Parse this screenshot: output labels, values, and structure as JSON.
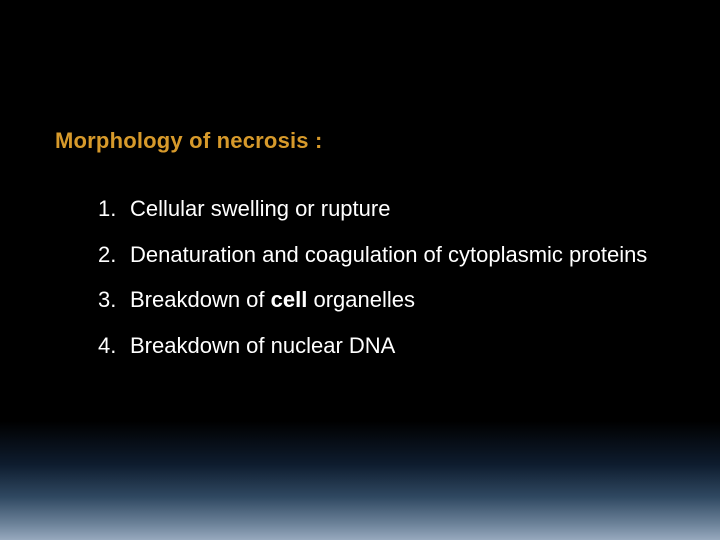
{
  "slide": {
    "title": "Morphology of necrosis :",
    "title_color": "#d79a2b",
    "text_color": "#ffffff",
    "background_gradient": [
      "#000000",
      "#000000",
      "#0e1c2e",
      "#2f4861",
      "#6c8299",
      "#97a9be"
    ],
    "title_fontsize": 22,
    "body_fontsize": 22,
    "items": [
      {
        "num": "1.",
        "text_before": "Cellular swelling or rupture",
        "bold": "",
        "text_after": ""
      },
      {
        "num": "2.",
        "text_before": "Denaturation  and coagulation of cytoplasmic proteins",
        "bold": "",
        "text_after": ""
      },
      {
        "num": "3.",
        "text_before": "Breakdown of ",
        "bold": "cell",
        "text_after": " organelles"
      },
      {
        "num": "4.",
        "text_before": "Breakdown of nuclear DNA",
        "bold": "",
        "text_after": ""
      }
    ]
  }
}
